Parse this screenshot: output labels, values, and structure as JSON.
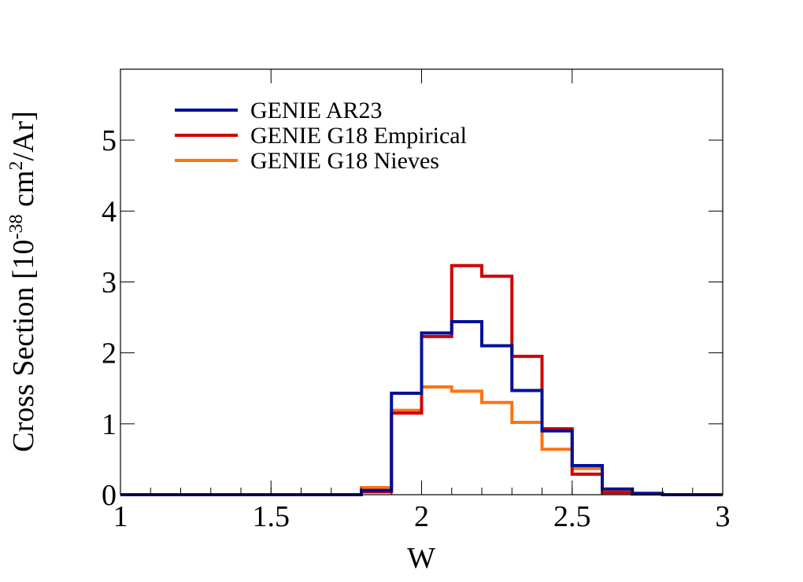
{
  "chart_data": {
    "type": "line",
    "style": "step-histogram",
    "xlabel": "W",
    "ylabel_main": "Cross Section [10",
    "ylabel_exp": "-38",
    "ylabel_mid": " cm",
    "ylabel_exp2": "2",
    "ylabel_tail": "/Ar]",
    "xlim": [
      1,
      3
    ],
    "ylim": [
      0,
      6
    ],
    "xticks": [
      "1",
      "1.5",
      "2",
      "2.5",
      "3"
    ],
    "xtick_values": [
      1,
      1.5,
      2,
      2.5,
      3
    ],
    "yticks": [
      "0",
      "1",
      "2",
      "3",
      "4",
      "5"
    ],
    "ytick_values": [
      0,
      1,
      2,
      3,
      4,
      5
    ],
    "grid": false,
    "legend_position": "top-left",
    "bin_edges": [
      1.0,
      1.1,
      1.2,
      1.3,
      1.4,
      1.5,
      1.6,
      1.7,
      1.8,
      1.9,
      2.0,
      2.1,
      2.2,
      2.3,
      2.4,
      2.5,
      2.6,
      2.7,
      2.8,
      2.9,
      3.0
    ],
    "series": [
      {
        "name": "GENIE G18 Nieves",
        "color": "#ff7311",
        "values": [
          0,
          0,
          0,
          0,
          0,
          0,
          0,
          0,
          0.1,
          1.19,
          1.52,
          1.46,
          1.3,
          1.02,
          0.64,
          0.37,
          0.04,
          0.01,
          0,
          0
        ]
      },
      {
        "name": "GENIE G18 Empirical",
        "color": "#d00000",
        "values": [
          0,
          0,
          0,
          0,
          0,
          0,
          0,
          0,
          0.04,
          1.15,
          2.23,
          3.23,
          3.08,
          1.95,
          0.93,
          0.29,
          0.03,
          0.01,
          0,
          0
        ]
      },
      {
        "name": "GENIE AR23",
        "color": "#00109a",
        "values": [
          0,
          0,
          0,
          0,
          0,
          0,
          0,
          0,
          0.06,
          1.43,
          2.28,
          2.44,
          2.1,
          1.47,
          0.9,
          0.41,
          0.08,
          0.02,
          0,
          0
        ]
      }
    ],
    "legend_order": [
      "GENIE AR23",
      "GENIE G18 Empirical",
      "GENIE G18 Nieves"
    ]
  }
}
